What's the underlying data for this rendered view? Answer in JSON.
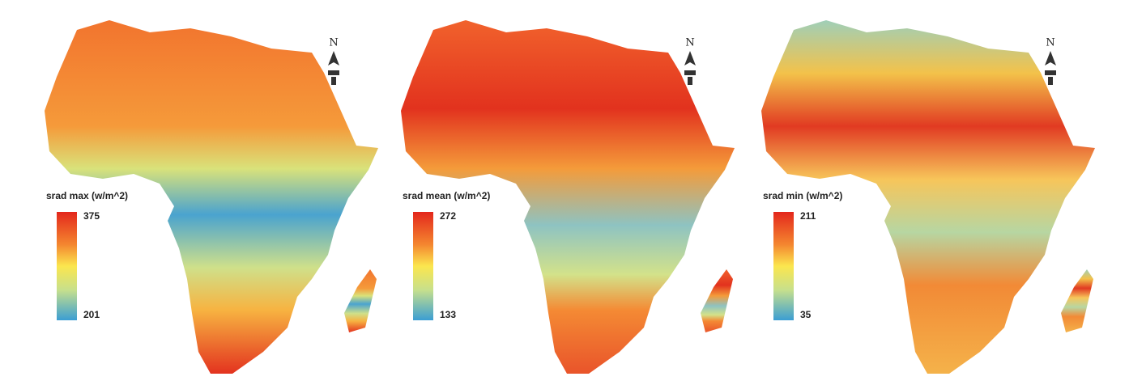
{
  "panels": [
    {
      "legend": {
        "title": "srad max (w/m^2)",
        "max": "375",
        "min": "201"
      },
      "north_label": "N"
    },
    {
      "legend": {
        "title": "srad mean (w/m^2)",
        "max": "272",
        "min": "133"
      },
      "north_label": "N"
    },
    {
      "legend": {
        "title": "srad min (w/m^2)",
        "max": "211",
        "min": "35"
      },
      "north_label": "N"
    }
  ]
}
